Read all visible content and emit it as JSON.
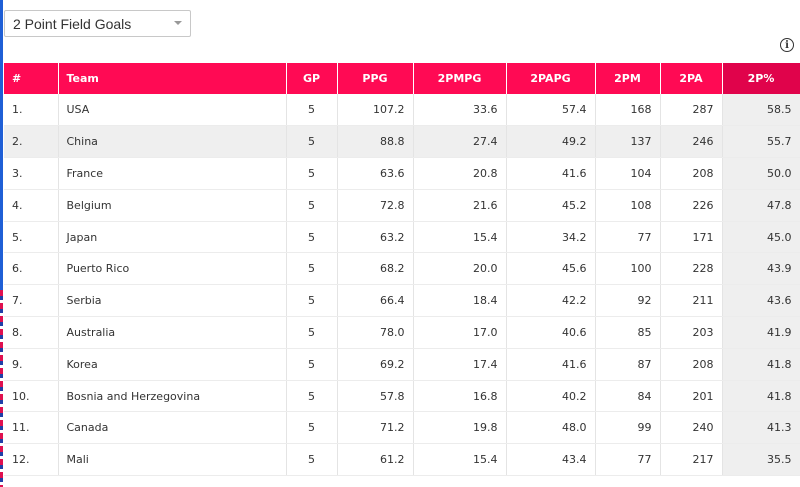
{
  "selector": {
    "value": "2 Point Field Goals"
  },
  "info_icon_label": "i",
  "table": {
    "headers": [
      "#",
      "Team",
      "GP",
      "PPG",
      "2PMPG",
      "2PAPG",
      "2PM",
      "2PA",
      "2P%"
    ],
    "rows": [
      {
        "rank": "1.",
        "team": "USA",
        "gp": "5",
        "ppg": "107.2",
        "pmpg": "33.6",
        "papg": "57.4",
        "pm": "168",
        "pa": "287",
        "pct": "58.5"
      },
      {
        "rank": "2.",
        "team": "China",
        "gp": "5",
        "ppg": "88.8",
        "pmpg": "27.4",
        "papg": "49.2",
        "pm": "137",
        "pa": "246",
        "pct": "55.7"
      },
      {
        "rank": "3.",
        "team": "France",
        "gp": "5",
        "ppg": "63.6",
        "pmpg": "20.8",
        "papg": "41.6",
        "pm": "104",
        "pa": "208",
        "pct": "50.0"
      },
      {
        "rank": "4.",
        "team": "Belgium",
        "gp": "5",
        "ppg": "72.8",
        "pmpg": "21.6",
        "papg": "45.2",
        "pm": "108",
        "pa": "226",
        "pct": "47.8"
      },
      {
        "rank": "5.",
        "team": "Japan",
        "gp": "5",
        "ppg": "63.2",
        "pmpg": "15.4",
        "papg": "34.2",
        "pm": "77",
        "pa": "171",
        "pct": "45.0"
      },
      {
        "rank": "6.",
        "team": "Puerto Rico",
        "gp": "5",
        "ppg": "68.2",
        "pmpg": "20.0",
        "papg": "45.6",
        "pm": "100",
        "pa": "228",
        "pct": "43.9"
      },
      {
        "rank": "7.",
        "team": "Serbia",
        "gp": "5",
        "ppg": "66.4",
        "pmpg": "18.4",
        "papg": "42.2",
        "pm": "92",
        "pa": "211",
        "pct": "43.6"
      },
      {
        "rank": "8.",
        "team": "Australia",
        "gp": "5",
        "ppg": "78.0",
        "pmpg": "17.0",
        "papg": "40.6",
        "pm": "85",
        "pa": "203",
        "pct": "41.9"
      },
      {
        "rank": "9.",
        "team": "Korea",
        "gp": "5",
        "ppg": "69.2",
        "pmpg": "17.4",
        "papg": "41.6",
        "pm": "87",
        "pa": "208",
        "pct": "41.8"
      },
      {
        "rank": "10.",
        "team": "Bosnia and Herzegovina",
        "gp": "5",
        "ppg": "57.8",
        "pmpg": "16.8",
        "papg": "40.2",
        "pm": "84",
        "pa": "201",
        "pct": "41.8"
      },
      {
        "rank": "11.",
        "team": "Canada",
        "gp": "5",
        "ppg": "71.2",
        "pmpg": "19.8",
        "papg": "48.0",
        "pm": "99",
        "pa": "240",
        "pct": "41.3"
      },
      {
        "rank": "12.",
        "team": "Mali",
        "gp": "5",
        "ppg": "61.2",
        "pmpg": "15.4",
        "papg": "43.4",
        "pm": "77",
        "pa": "217",
        "pct": "35.5"
      }
    ]
  },
  "colors": {
    "header": "#ff0a54",
    "header_sorted": "#e0034b",
    "alt_row": "#efefef"
  }
}
